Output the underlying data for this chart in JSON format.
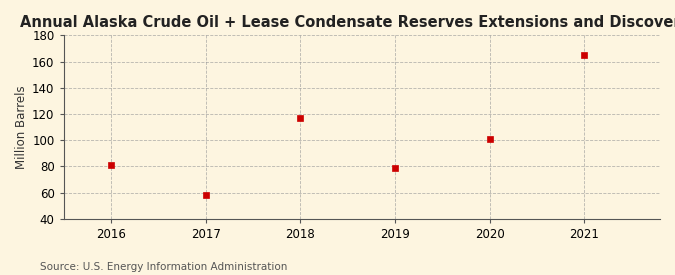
{
  "title": "Annual Alaska Crude Oil + Lease Condensate Reserves Extensions and Discoveries",
  "ylabel": "Million Barrels",
  "source": "Source: U.S. Energy Information Administration",
  "x": [
    2016,
    2017,
    2018,
    2019,
    2020,
    2021
  ],
  "y": [
    81,
    58,
    117,
    79,
    101,
    165
  ],
  "xlim": [
    2015.5,
    2021.8
  ],
  "ylim": [
    40,
    180
  ],
  "yticks": [
    40,
    60,
    80,
    100,
    120,
    140,
    160,
    180
  ],
  "xticks": [
    2016,
    2017,
    2018,
    2019,
    2020,
    2021
  ],
  "bg_color": "#fdf5e0",
  "plot_bg_color": "#fdf5e0",
  "grid_color": "#999999",
  "marker_color": "#cc0000",
  "marker_size": 4,
  "title_fontsize": 10.5,
  "label_fontsize": 8.5,
  "tick_fontsize": 8.5,
  "source_fontsize": 7.5
}
